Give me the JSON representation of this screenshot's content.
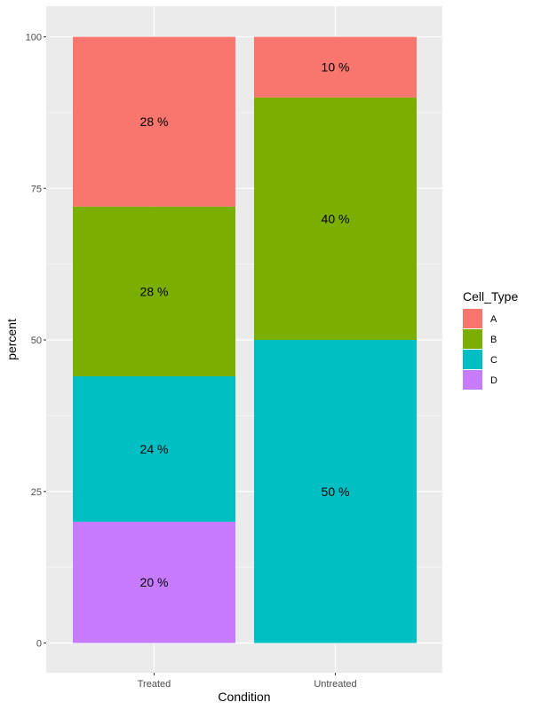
{
  "chart_data": {
    "type": "bar",
    "stacked": true,
    "categories": [
      "Treated",
      "Untreated"
    ],
    "xlabel": "Condition",
    "ylabel": "percent",
    "ylim": [
      0,
      100
    ],
    "yticks": [
      0,
      25,
      50,
      75,
      100
    ],
    "grid": true,
    "legend": {
      "title": "Cell_Type",
      "placement": "right"
    },
    "series": [
      {
        "name": "A",
        "color": "#F8766D",
        "values": [
          28,
          10
        ],
        "labels": [
          "28 %",
          "10 %"
        ]
      },
      {
        "name": "B",
        "color": "#7CAE00",
        "values": [
          28,
          40
        ],
        "labels": [
          "28 %",
          "40 %"
        ]
      },
      {
        "name": "C",
        "color": "#00BFC4",
        "values": [
          24,
          50
        ],
        "labels": [
          "24 %",
          "50 %"
        ]
      },
      {
        "name": "D",
        "color": "#C77CFF",
        "values": [
          20,
          0
        ],
        "labels": [
          "20 %",
          ""
        ]
      }
    ]
  }
}
